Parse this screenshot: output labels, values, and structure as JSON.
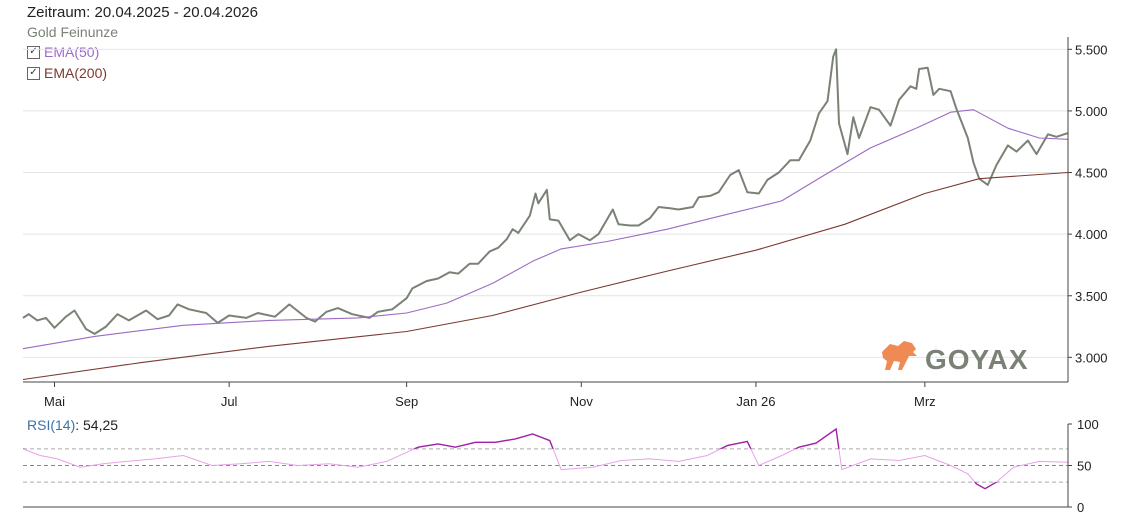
{
  "header": {
    "period_label": "Zeitraum: 20.04.2025 - 20.04.2026",
    "instrument": "Gold Feinunze"
  },
  "legend": [
    {
      "label": "EMA(50)",
      "color": "#9a6bc4",
      "checked": true
    },
    {
      "label": "EMA(200)",
      "color": "#7b3a32",
      "checked": true
    }
  ],
  "logo": {
    "text": "GOYAX",
    "color": "#f08a55",
    "text_color": "#7a8276"
  },
  "rsi": {
    "name": "RSI(14)",
    "value_text": "54,25"
  },
  "chart_data": [
    {
      "type": "line",
      "title": "Gold Feinunze",
      "x_start": "2025-04-20",
      "x_end": "2026-04-20",
      "ylim": [
        2800,
        5600
      ],
      "ytick_values": [
        3000,
        3500,
        4000,
        4500,
        5000,
        5500
      ],
      "ytick_labels": [
        "3.000",
        "3.500",
        "4.000",
        "4.500",
        "5.000",
        "5.500"
      ],
      "xticks": [
        {
          "label": "Mai",
          "date": "2025-05-01"
        },
        {
          "label": "Jul",
          "date": "2025-07-01"
        },
        {
          "label": "Sep",
          "date": "2025-09-01"
        },
        {
          "label": "Nov",
          "date": "2025-11-01"
        },
        {
          "label": "Jan 26",
          "date": "2026-01-01"
        },
        {
          "label": "Mrz",
          "date": "2026-03-01"
        }
      ],
      "grid": true,
      "series": [
        {
          "name": "Gold Feinunze",
          "color": "#7a8276",
          "points": [
            [
              "2025-04-20",
              3320
            ],
            [
              "2025-04-22",
              3350
            ],
            [
              "2025-04-25",
              3300
            ],
            [
              "2025-04-28",
              3320
            ],
            [
              "2025-05-01",
              3240
            ],
            [
              "2025-05-05",
              3330
            ],
            [
              "2025-05-08",
              3380
            ],
            [
              "2025-05-12",
              3230
            ],
            [
              "2025-05-15",
              3190
            ],
            [
              "2025-05-19",
              3250
            ],
            [
              "2025-05-23",
              3350
            ],
            [
              "2025-05-27",
              3300
            ],
            [
              "2025-06-02",
              3380
            ],
            [
              "2025-06-06",
              3310
            ],
            [
              "2025-06-10",
              3340
            ],
            [
              "2025-06-13",
              3430
            ],
            [
              "2025-06-17",
              3390
            ],
            [
              "2025-06-23",
              3360
            ],
            [
              "2025-06-27",
              3280
            ],
            [
              "2025-07-01",
              3340
            ],
            [
              "2025-07-07",
              3320
            ],
            [
              "2025-07-11",
              3360
            ],
            [
              "2025-07-17",
              3330
            ],
            [
              "2025-07-22",
              3430
            ],
            [
              "2025-07-28",
              3320
            ],
            [
              "2025-07-31",
              3290
            ],
            [
              "2025-08-04",
              3370
            ],
            [
              "2025-08-08",
              3400
            ],
            [
              "2025-08-13",
              3350
            ],
            [
              "2025-08-19",
              3320
            ],
            [
              "2025-08-22",
              3370
            ],
            [
              "2025-08-27",
              3390
            ],
            [
              "2025-09-01",
              3480
            ],
            [
              "2025-09-03",
              3560
            ],
            [
              "2025-09-08",
              3620
            ],
            [
              "2025-09-12",
              3640
            ],
            [
              "2025-09-16",
              3690
            ],
            [
              "2025-09-19",
              3680
            ],
            [
              "2025-09-23",
              3760
            ],
            [
              "2025-09-26",
              3760
            ],
            [
              "2025-09-30",
              3860
            ],
            [
              "2025-10-03",
              3890
            ],
            [
              "2025-10-06",
              3960
            ],
            [
              "2025-10-08",
              4040
            ],
            [
              "2025-10-10",
              4010
            ],
            [
              "2025-10-14",
              4150
            ],
            [
              "2025-10-16",
              4330
            ],
            [
              "2025-10-17",
              4250
            ],
            [
              "2025-10-20",
              4360
            ],
            [
              "2025-10-21",
              4120
            ],
            [
              "2025-10-24",
              4110
            ],
            [
              "2025-10-27",
              3990
            ],
            [
              "2025-10-28",
              3950
            ],
            [
              "2025-10-31",
              4000
            ],
            [
              "2025-11-04",
              3950
            ],
            [
              "2025-11-07",
              4000
            ],
            [
              "2025-11-12",
              4200
            ],
            [
              "2025-11-14",
              4080
            ],
            [
              "2025-11-18",
              4070
            ],
            [
              "2025-11-21",
              4070
            ],
            [
              "2025-11-25",
              4130
            ],
            [
              "2025-11-28",
              4220
            ],
            [
              "2025-12-02",
              4210
            ],
            [
              "2025-12-05",
              4200
            ],
            [
              "2025-12-10",
              4220
            ],
            [
              "2025-12-12",
              4300
            ],
            [
              "2025-12-16",
              4310
            ],
            [
              "2025-12-19",
              4340
            ],
            [
              "2025-12-23",
              4480
            ],
            [
              "2025-12-26",
              4520
            ],
            [
              "2025-12-29",
              4340
            ],
            [
              "2026-01-02",
              4330
            ],
            [
              "2026-01-05",
              4440
            ],
            [
              "2026-01-09",
              4500
            ],
            [
              "2026-01-13",
              4600
            ],
            [
              "2026-01-16",
              4600
            ],
            [
              "2026-01-20",
              4760
            ],
            [
              "2026-01-23",
              4980
            ],
            [
              "2026-01-26",
              5080
            ],
            [
              "2026-01-28",
              5440
            ],
            [
              "2026-01-29",
              5500
            ],
            [
              "2026-01-30",
              4900
            ],
            [
              "2026-02-02",
              4650
            ],
            [
              "2026-02-04",
              4950
            ],
            [
              "2026-02-06",
              4780
            ],
            [
              "2026-02-10",
              5030
            ],
            [
              "2026-02-13",
              5010
            ],
            [
              "2026-02-17",
              4880
            ],
            [
              "2026-02-20",
              5090
            ],
            [
              "2026-02-24",
              5200
            ],
            [
              "2026-02-26",
              5180
            ],
            [
              "2026-02-27",
              5340
            ],
            [
              "2026-03-02",
              5350
            ],
            [
              "2026-03-04",
              5130
            ],
            [
              "2026-03-06",
              5180
            ],
            [
              "2026-03-10",
              5160
            ],
            [
              "2026-03-12",
              5020
            ],
            [
              "2026-03-16",
              4780
            ],
            [
              "2026-03-18",
              4580
            ],
            [
              "2026-03-20",
              4450
            ],
            [
              "2026-03-23",
              4400
            ],
            [
              "2026-03-26",
              4560
            ],
            [
              "2026-03-30",
              4720
            ],
            [
              "2026-04-02",
              4670
            ],
            [
              "2026-04-06",
              4760
            ],
            [
              "2026-04-09",
              4650
            ],
            [
              "2026-04-13",
              4810
            ],
            [
              "2026-04-16",
              4790
            ],
            [
              "2026-04-20",
              4820
            ]
          ]
        },
        {
          "name": "EMA(50)",
          "color": "#9a6bc4",
          "points": [
            [
              "2025-04-20",
              3070
            ],
            [
              "2025-05-15",
              3170
            ],
            [
              "2025-06-15",
              3260
            ],
            [
              "2025-07-15",
              3300
            ],
            [
              "2025-08-15",
              3320
            ],
            [
              "2025-09-01",
              3360
            ],
            [
              "2025-09-15",
              3440
            ],
            [
              "2025-10-01",
              3600
            ],
            [
              "2025-10-15",
              3780
            ],
            [
              "2025-10-25",
              3880
            ],
            [
              "2025-11-10",
              3940
            ],
            [
              "2025-12-01",
              4040
            ],
            [
              "2025-12-20",
              4150
            ],
            [
              "2026-01-10",
              4270
            ],
            [
              "2026-01-25",
              4480
            ],
            [
              "2026-02-10",
              4700
            ],
            [
              "2026-02-27",
              4870
            ],
            [
              "2026-03-10",
              4990
            ],
            [
              "2026-03-18",
              5010
            ],
            [
              "2026-03-30",
              4860
            ],
            [
              "2026-04-10",
              4780
            ],
            [
              "2026-04-20",
              4770
            ]
          ]
        },
        {
          "name": "EMA(200)",
          "color": "#7b3a32",
          "points": [
            [
              "2025-04-20",
              2820
            ],
            [
              "2025-06-01",
              2960
            ],
            [
              "2025-07-15",
              3090
            ],
            [
              "2025-09-01",
              3210
            ],
            [
              "2025-10-01",
              3340
            ],
            [
              "2025-11-01",
              3530
            ],
            [
              "2025-12-01",
              3700
            ],
            [
              "2026-01-01",
              3870
            ],
            [
              "2026-02-01",
              4080
            ],
            [
              "2026-03-01",
              4330
            ],
            [
              "2026-03-20",
              4450
            ],
            [
              "2026-04-20",
              4500
            ]
          ]
        }
      ]
    },
    {
      "type": "line",
      "title": "RSI(14)",
      "ylim": [
        0,
        100
      ],
      "ytick_values": [
        0,
        50,
        100
      ],
      "ytick_labels": [
        "0",
        "50",
        "100"
      ],
      "reference_lines": [
        30,
        50,
        70
      ],
      "series": [
        {
          "name": "RSI(14)",
          "color": "#e6a2e6",
          "overbought_color": "#a020a8",
          "oversold_color": "#a020a8",
          "points": [
            [
              "2025-04-20",
              70
            ],
            [
              "2025-04-26",
              62
            ],
            [
              "2025-05-02",
              58
            ],
            [
              "2025-05-10",
              48
            ],
            [
              "2025-05-18",
              52
            ],
            [
              "2025-05-26",
              55
            ],
            [
              "2025-06-05",
              58
            ],
            [
              "2025-06-15",
              62
            ],
            [
              "2025-06-25",
              50
            ],
            [
              "2025-07-05",
              52
            ],
            [
              "2025-07-15",
              55
            ],
            [
              "2025-07-25",
              50
            ],
            [
              "2025-08-05",
              52
            ],
            [
              "2025-08-15",
              48
            ],
            [
              "2025-08-25",
              55
            ],
            [
              "2025-09-05",
              72
            ],
            [
              "2025-09-12",
              76
            ],
            [
              "2025-09-18",
              72
            ],
            [
              "2025-09-25",
              78
            ],
            [
              "2025-10-02",
              78
            ],
            [
              "2025-10-09",
              82
            ],
            [
              "2025-10-15",
              88
            ],
            [
              "2025-10-21",
              80
            ],
            [
              "2025-10-25",
              45
            ],
            [
              "2025-11-05",
              48
            ],
            [
              "2025-11-15",
              56
            ],
            [
              "2025-11-25",
              58
            ],
            [
              "2025-12-05",
              55
            ],
            [
              "2025-12-15",
              62
            ],
            [
              "2025-12-22",
              74
            ],
            [
              "2025-12-29",
              79
            ],
            [
              "2026-01-02",
              50
            ],
            [
              "2026-01-10",
              62
            ],
            [
              "2026-01-16",
              72
            ],
            [
              "2026-01-22",
              77
            ],
            [
              "2026-01-29",
              94
            ],
            [
              "2026-01-31",
              45
            ],
            [
              "2026-02-10",
              58
            ],
            [
              "2026-02-20",
              56
            ],
            [
              "2026-03-01",
              62
            ],
            [
              "2026-03-10",
              50
            ],
            [
              "2026-03-16",
              40
            ],
            [
              "2026-03-19",
              28
            ],
            [
              "2026-03-22",
              22
            ],
            [
              "2026-03-26",
              30
            ],
            [
              "2026-04-01",
              48
            ],
            [
              "2026-04-10",
              55
            ],
            [
              "2026-04-20",
              54
            ]
          ]
        }
      ]
    }
  ]
}
